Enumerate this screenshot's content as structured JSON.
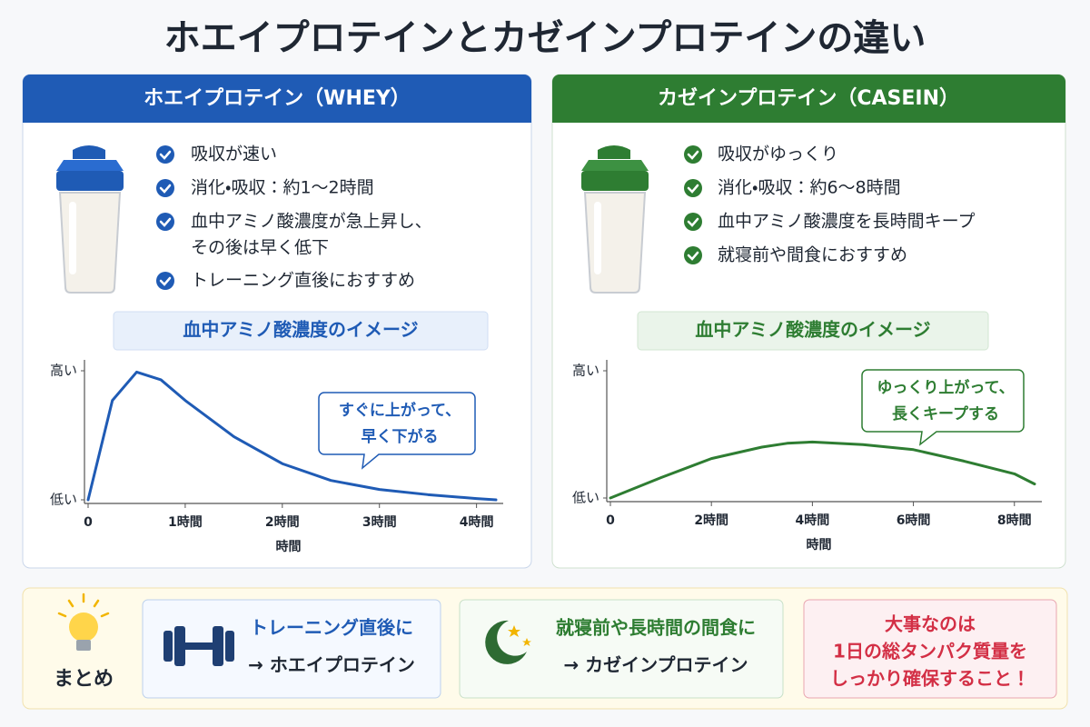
{
  "title": "ホエイプロテインとカゼインプロテインの違い",
  "panels": [
    {
      "header": "ホエイプロテイン（WHEY）",
      "points": [
        [
          "吸収が速い"
        ],
        [
          "消化・吸収：約1〜2時間"
        ],
        [
          "血中アミノ酸濃度が急上昇し、",
          "その後は早く低下"
        ],
        [
          "トレーニング直後におすすめ"
        ]
      ]
    },
    {
      "header": "カゼインプロテイン（CASEIN）",
      "points": [
        [
          "吸収がゆっくり"
        ],
        [
          "消化・吸収：約6〜8時間"
        ],
        [
          "血中アミノ酸濃度を長時間キープ"
        ],
        [
          "就寝前や間食におすすめ"
        ]
      ]
    }
  ],
  "chart_data": [
    {
      "type": "line",
      "title": "血中アミノ酸濃度のイメージ",
      "xlabel": "時間",
      "color": "#1f5bb5",
      "x": [
        0,
        0.25,
        0.5,
        0.75,
        1,
        1.5,
        2,
        2.5,
        3,
        3.5,
        4,
        4.2
      ],
      "values": [
        0,
        77,
        99,
        93,
        77,
        49,
        28,
        15,
        8,
        4,
        1,
        0
      ],
      "xlim": [
        0,
        4.2
      ],
      "ylim": [
        0,
        100
      ],
      "xticks": [
        0,
        {
          "value": 1,
          "label": "1時間"
        },
        {
          "value": 2,
          "label": "2時間"
        },
        {
          "value": 3,
          "label": "3時間"
        },
        {
          "value": 4,
          "label": "4時間"
        }
      ],
      "yticks": [
        {
          "value": 0,
          "label": "低い"
        },
        {
          "value": 100,
          "label": "高い"
        }
      ],
      "annotation": [
        "すぐに上がって、",
        "早く下がる"
      ]
    },
    {
      "type": "line",
      "title": "血中アミノ酸濃度のイメージ",
      "xlabel": "時間",
      "color": "#2e7d32",
      "x": [
        0,
        1,
        2,
        3,
        3.5,
        4,
        5,
        6,
        7,
        8,
        8.4
      ],
      "values": [
        0,
        16,
        31,
        40,
        43,
        44,
        42,
        38,
        29,
        19,
        11
      ],
      "xlim": [
        0,
        8.4
      ],
      "ylim": [
        0,
        100
      ],
      "xticks": [
        0,
        {
          "value": 2,
          "label": "2時間"
        },
        {
          "value": 4,
          "label": "4時間"
        },
        {
          "value": 6,
          "label": "6時間"
        },
        {
          "value": 8,
          "label": "8時間"
        }
      ],
      "yticks": [
        {
          "value": 0,
          "label": "低い"
        },
        {
          "value": 100,
          "label": "高い"
        }
      ],
      "annotation": [
        "ゆっくり上がって、",
        "長くキープする"
      ]
    }
  ],
  "summary": {
    "label": "まとめ",
    "items": [
      {
        "title": "トレーニング直後に",
        "text": "→ ホエイプロテイン"
      },
      {
        "title": "就寝前や長時間の間食に",
        "text": "→ カゼインプロテイン"
      }
    ],
    "note": [
      "大事なのは",
      "1日の総タンパク質量を",
      "しっかり確保すること！"
    ]
  }
}
